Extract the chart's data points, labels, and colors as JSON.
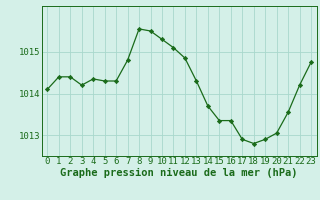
{
  "hours": [
    0,
    1,
    2,
    3,
    4,
    5,
    6,
    7,
    8,
    9,
    10,
    11,
    12,
    13,
    14,
    15,
    16,
    17,
    18,
    19,
    20,
    21,
    22,
    23
  ],
  "pressure": [
    1014.1,
    1014.4,
    1014.4,
    1014.2,
    1014.35,
    1014.3,
    1014.3,
    1014.8,
    1015.55,
    1015.5,
    1015.3,
    1015.1,
    1014.85,
    1014.3,
    1013.7,
    1013.35,
    1013.35,
    1012.9,
    1012.8,
    1012.9,
    1013.05,
    1013.55,
    1014.2,
    1014.75
  ],
  "line_color": "#1a6b1a",
  "marker_color": "#1a6b1a",
  "bg_color": "#d4f0e8",
  "grid_color": "#a8d8cc",
  "axis_color": "#1a6b1a",
  "title": "Graphe pression niveau de la mer (hPa)",
  "ylim_min": 1012.5,
  "ylim_max": 1016.1,
  "yticks": [
    1013,
    1014,
    1015
  ],
  "title_fontsize": 7.5,
  "tick_fontsize": 6.5
}
